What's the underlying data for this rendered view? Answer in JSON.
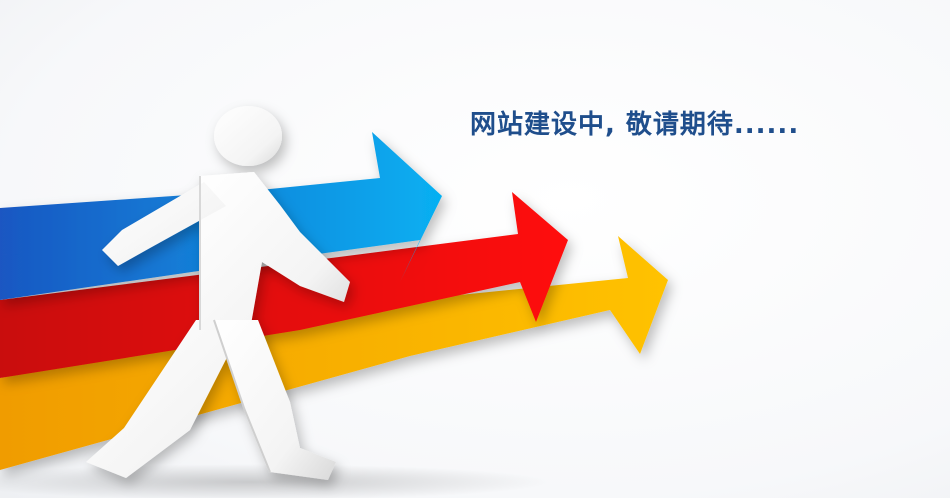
{
  "headline": "网站建设中, 敬请期待......",
  "colors": {
    "headline": "#1f4e8c",
    "arrow_blue": "#0a9be3",
    "arrow_red": "#e30d0d",
    "arrow_yellow": "#f6b400",
    "figure": "#ffffff"
  },
  "illustration": {
    "subject": "walking-figure-icon",
    "arrows": [
      "blue-arrow-icon",
      "red-arrow-icon",
      "yellow-arrow-icon"
    ]
  }
}
